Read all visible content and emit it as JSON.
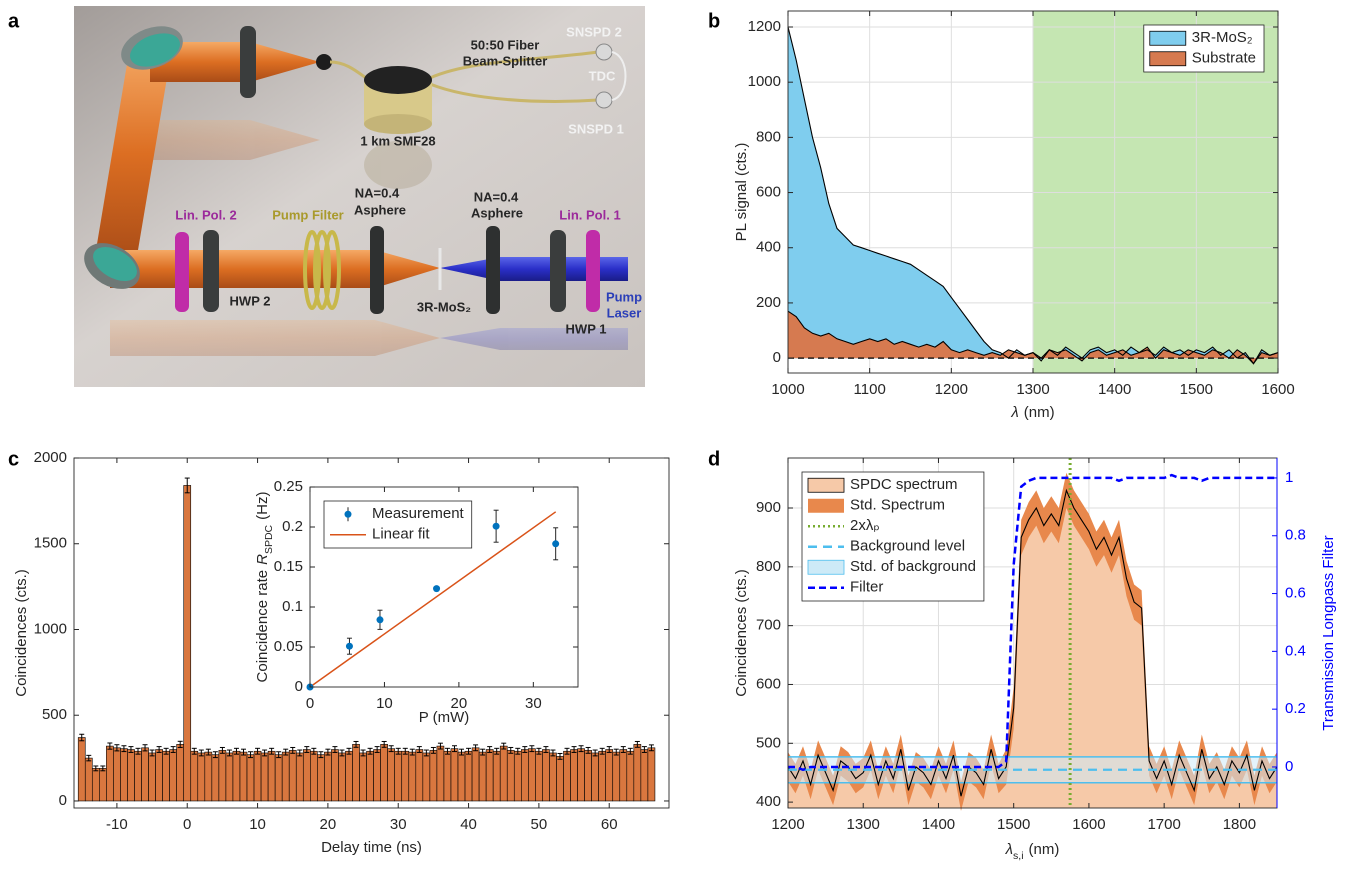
{
  "illustration": {
    "panel": "a",
    "labels": [
      "50:50 Fiber",
      "Beam-Splitter",
      "SNSPD 2",
      "TDC",
      "SNSPD 1",
      "1 km SMF28",
      "NA=0.4",
      "Asphere",
      "NA=0.4",
      "Asphere",
      "Lin. Pol. 2",
      "Pump Filter",
      "Lin. Pol. 1",
      "HWP 2",
      "3R-MoS₂",
      "HWP 1",
      "Pump",
      "Laser"
    ]
  },
  "chart_data": [
    {
      "panel": "b",
      "type": "area",
      "x": [
        1000,
        1010,
        1020,
        1030,
        1040,
        1050,
        1060,
        1070,
        1080,
        1090,
        1100,
        1110,
        1120,
        1130,
        1140,
        1150,
        1160,
        1170,
        1180,
        1190,
        1200,
        1210,
        1220,
        1230,
        1240,
        1250,
        1260,
        1270,
        1280,
        1290,
        1300,
        1310,
        1320,
        1330,
        1340,
        1350,
        1360,
        1370,
        1380,
        1390,
        1400,
        1410,
        1420,
        1430,
        1440,
        1450,
        1460,
        1470,
        1480,
        1490,
        1500,
        1510,
        1520,
        1530,
        1540,
        1550,
        1560,
        1570,
        1580,
        1590,
        1600
      ],
      "series": [
        {
          "name": "3R-MoS₂",
          "style": "area",
          "color": "#7fcdee",
          "line_color": "#000000",
          "values": [
            1200,
            1080,
            940,
            800,
            690,
            560,
            470,
            440,
            410,
            400,
            390,
            380,
            370,
            360,
            350,
            340,
            320,
            300,
            280,
            260,
            220,
            180,
            140,
            100,
            60,
            30,
            20,
            0,
            30,
            10,
            20,
            -10,
            30,
            10,
            40,
            20,
            0,
            30,
            40,
            20,
            30,
            10,
            40,
            20,
            30,
            10,
            40,
            20,
            30,
            10,
            30,
            20,
            40,
            10,
            30,
            0,
            20,
            -20,
            30,
            10,
            20
          ]
        },
        {
          "name": "Substrate",
          "style": "area",
          "color": "#d67a50",
          "line_color": "#000000",
          "values": [
            170,
            150,
            110,
            90,
            80,
            90,
            70,
            60,
            50,
            60,
            70,
            60,
            70,
            50,
            60,
            50,
            40,
            50,
            40,
            60,
            30,
            20,
            30,
            20,
            10,
            20,
            10,
            30,
            20,
            10,
            20,
            0,
            30,
            20,
            30,
            10,
            -10,
            20,
            30,
            10,
            20,
            30,
            10,
            20,
            40,
            0,
            30,
            20,
            10,
            30,
            20,
            10,
            30,
            20,
            0,
            30,
            10,
            -20,
            20,
            10,
            20
          ]
        }
      ],
      "xlim": [
        1000,
        1600
      ],
      "ylim": [
        -54,
        1258
      ],
      "xticks": [
        1000,
        1100,
        1200,
        1300,
        1400,
        1500,
        1600
      ],
      "yticks": [
        0,
        200,
        400,
        600,
        800,
        1000,
        1200
      ],
      "x_label": {
        "symbol": "λ",
        "unit": "(nm)"
      },
      "y_label": "PL signal (cts.)",
      "shaded_region": [
        1300,
        1600
      ],
      "shaded_color": "#c5e6b2",
      "hline": 0,
      "grid": true,
      "legend": "upper right"
    },
    {
      "panel": "c",
      "type": "bar",
      "x": [
        -15,
        -14,
        -13,
        -12,
        -11,
        -10,
        -9,
        -8,
        -7,
        -6,
        -5,
        -4,
        -3,
        -2,
        -1,
        0,
        1,
        2,
        3,
        4,
        5,
        6,
        7,
        8,
        9,
        10,
        11,
        12,
        13,
        14,
        15,
        16,
        17,
        18,
        19,
        20,
        21,
        22,
        23,
        24,
        25,
        26,
        27,
        28,
        29,
        30,
        31,
        32,
        33,
        34,
        35,
        36,
        37,
        38,
        39,
        40,
        41,
        42,
        43,
        44,
        45,
        46,
        47,
        48,
        49,
        50,
        51,
        52,
        53,
        54,
        55,
        56,
        57,
        58,
        59,
        60,
        61,
        62,
        63,
        64,
        65,
        66
      ],
      "values": [
        370,
        250,
        190,
        190,
        320,
        310,
        305,
        300,
        290,
        310,
        280,
        300,
        290,
        300,
        330,
        1840,
        290,
        280,
        285,
        270,
        295,
        280,
        290,
        285,
        270,
        290,
        280,
        290,
        270,
        285,
        295,
        280,
        300,
        290,
        270,
        285,
        300,
        280,
        290,
        330,
        280,
        290,
        300,
        330,
        305,
        290,
        290,
        285,
        300,
        280,
        295,
        320,
        290,
        305,
        285,
        290,
        310,
        285,
        300,
        290,
        320,
        295,
        290,
        300,
        305,
        290,
        300,
        280,
        260,
        290,
        300,
        305,
        295,
        280,
        290,
        300,
        285,
        300,
        290,
        330,
        300,
        310
      ],
      "errors": [
        19,
        16,
        14,
        14,
        18,
        18,
        17,
        17,
        17,
        18,
        17,
        17,
        17,
        17,
        18,
        43,
        17,
        17,
        17,
        17,
        17,
        17,
        17,
        17,
        17,
        17,
        17,
        17,
        17,
        17,
        17,
        17,
        17,
        17,
        17,
        17,
        17,
        17,
        17,
        17,
        17,
        17,
        17,
        17,
        17,
        17,
        17,
        17,
        17,
        17,
        17,
        17,
        17,
        17,
        17,
        17,
        17,
        17,
        17,
        17,
        17,
        17,
        17,
        17,
        17,
        17,
        17,
        17,
        17,
        17,
        17,
        17,
        17,
        17,
        17,
        17,
        17,
        17,
        17,
        17,
        17,
        17
      ],
      "color": "#d9773f",
      "xlim": [
        -16.1,
        68.5
      ],
      "ylim": [
        -41,
        2000
      ],
      "xticks": [
        -10,
        0,
        10,
        20,
        30,
        40,
        50,
        60
      ],
      "yticks": [
        0,
        500,
        1000,
        1500,
        2000
      ],
      "x_label": "Delay time (ns)",
      "y_label": "Coincidences (cts.)",
      "grid": false,
      "inset": {
        "type": "scatter",
        "series": [
          {
            "name": "Measurement",
            "style": "scatter",
            "color": "#0072bd",
            "x": [
              0,
              5.3,
              9.4,
              17,
              25,
              33
            ],
            "values": [
              0,
              0.051,
              0.084,
              0.123,
              0.201,
              0.179
            ],
            "errors": [
              0.002,
              0.01,
              0.012,
              0.002,
              0.02,
              0.02
            ]
          },
          {
            "name": "Linear fit",
            "style": "line",
            "color": "#d95319",
            "x": [
              0,
              33
            ],
            "values": [
              0,
              0.219
            ]
          }
        ],
        "xlim": [
          0,
          36
        ],
        "ylim": [
          0,
          0.25
        ],
        "xticks": [
          0,
          10,
          20,
          30
        ],
        "yticks": [
          0,
          0.05,
          0.1,
          0.15,
          0.2,
          0.25
        ],
        "x_label": "P (mW)",
        "y_label": {
          "text": "Coincidence rate",
          "symbol": "R",
          "subscript": "SPDC",
          "unit": "(Hz)"
        },
        "grid": false,
        "legend": "upper left"
      }
    },
    {
      "panel": "d",
      "type": "line",
      "x": [
        1200,
        1210,
        1220,
        1230,
        1240,
        1250,
        1260,
        1270,
        1280,
        1290,
        1300,
        1310,
        1320,
        1330,
        1340,
        1350,
        1360,
        1370,
        1380,
        1390,
        1400,
        1410,
        1420,
        1430,
        1440,
        1450,
        1460,
        1470,
        1480,
        1490,
        1500,
        1510,
        1520,
        1530,
        1540,
        1550,
        1560,
        1570,
        1580,
        1590,
        1600,
        1610,
        1620,
        1630,
        1640,
        1650,
        1660,
        1670,
        1680,
        1690,
        1700,
        1710,
        1720,
        1730,
        1740,
        1750,
        1760,
        1770,
        1780,
        1790,
        1800,
        1810,
        1820,
        1830,
        1840,
        1850
      ],
      "series": [
        {
          "name": "SPDC spectrum",
          "style": "area",
          "color": "#f6c9a8",
          "line_color": "#000000",
          "values": [
            460,
            440,
            470,
            430,
            480,
            450,
            420,
            470,
            460,
            440,
            450,
            480,
            430,
            470,
            440,
            490,
            420,
            460,
            450,
            430,
            470,
            440,
            480,
            410,
            460,
            450,
            430,
            490,
            440,
            460,
            560,
            850,
            880,
            900,
            870,
            890,
            870,
            930,
            900,
            880,
            860,
            830,
            850,
            820,
            850,
            780,
            740,
            730,
            470,
            440,
            470,
            430,
            480,
            450,
            420,
            490,
            440,
            460,
            430,
            470,
            450,
            480,
            420,
            470,
            440,
            460
          ]
        },
        {
          "name": "Std. Spectrum",
          "style": "band",
          "color": "#e8884c",
          "values": [
            25,
            25,
            25,
            25,
            25,
            25,
            25,
            25,
            25,
            25,
            25,
            25,
            25,
            25,
            25,
            25,
            25,
            25,
            25,
            25,
            25,
            25,
            25,
            25,
            25,
            25,
            25,
            25,
            25,
            30,
            35,
            30,
            30,
            30,
            30,
            30,
            30,
            30,
            30,
            30,
            30,
            30,
            30,
            30,
            30,
            30,
            30,
            30,
            25,
            25,
            25,
            25,
            25,
            25,
            25,
            25,
            25,
            25,
            25,
            25,
            25,
            25,
            25,
            25,
            25,
            25
          ]
        },
        {
          "name": "2xλₚ",
          "style": "vline",
          "color": "#77ac30",
          "dash": "2 3",
          "x_value": 1575
        },
        {
          "name": "Background level",
          "style": "hline",
          "color": "#4dbeee",
          "dash": "9 6",
          "value": 455
        },
        {
          "name": "Std. of background",
          "style": "range",
          "color": "#4dbeee",
          "fill": "#cdeaf7",
          "range": [
            433,
            477
          ]
        },
        {
          "name": "Filter",
          "style": "line",
          "axis": "y2",
          "color": "#0000ff",
          "dash": "7 4",
          "values": [
            0,
            0,
            -0.01,
            0,
            0,
            0,
            0,
            0,
            0,
            0,
            0,
            0,
            0,
            0,
            0,
            0,
            0,
            0,
            0,
            0,
            0,
            0,
            0,
            0,
            0,
            0,
            0,
            0,
            0,
            0.02,
            0.7,
            0.97,
            0.99,
            1,
            1,
            1,
            1,
            1,
            1,
            1,
            1,
            1,
            1,
            1,
            0.99,
            1,
            1,
            1,
            1,
            1,
            1,
            1.01,
            1,
            1,
            1,
            0.99,
            1,
            1,
            1,
            1,
            1,
            1,
            1,
            1,
            1,
            1
          ]
        }
      ],
      "xlim": [
        1200,
        1850
      ],
      "ylim": [
        390,
        985
      ],
      "y2lim": [
        -0.142,
        1.069
      ],
      "xticks": [
        1200,
        1300,
        1400,
        1500,
        1600,
        1700,
        1800
      ],
      "yticks": [
        400,
        500,
        600,
        700,
        800,
        900
      ],
      "y2ticks": [
        0,
        0.2,
        0.4,
        0.6,
        0.8,
        1
      ],
      "x_label": {
        "symbol": "λ",
        "subscript": "s,i",
        "unit": "(nm)"
      },
      "y_label": "Coincidences (cts.)",
      "y2_label": "Transmission Longpass Filter",
      "y2_color": "#0000ff",
      "grid": true,
      "legend": "upper left"
    }
  ]
}
